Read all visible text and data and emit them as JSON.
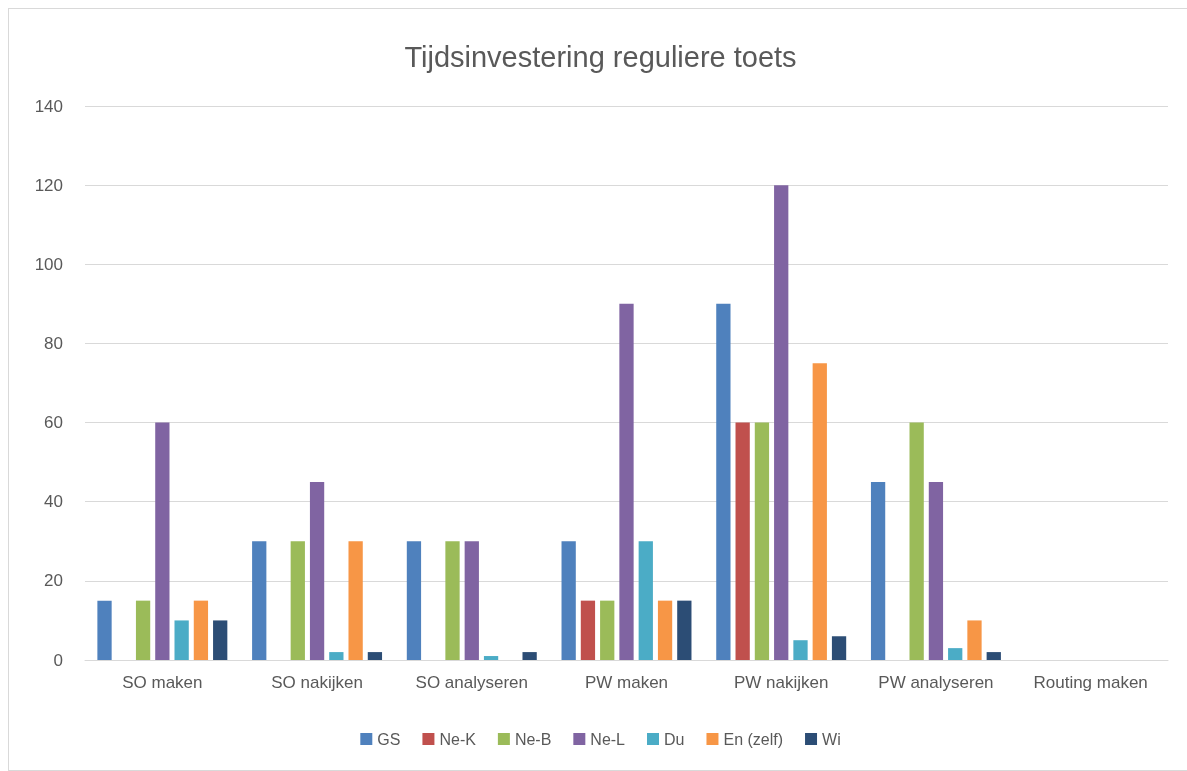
{
  "chart_data": {
    "type": "bar",
    "title": "Tijdsinvestering reguliere toets",
    "categories": [
      "SO maken",
      "SO nakijken",
      "SO analyseren",
      "PW maken",
      "PW nakijken",
      "PW analyseren",
      "Routing maken"
    ],
    "series": [
      {
        "name": "GS",
        "color": "#4f81bd",
        "values": [
          15,
          30,
          30,
          30,
          90,
          45,
          null
        ]
      },
      {
        "name": "Ne-K",
        "color": "#c0504d",
        "values": [
          null,
          null,
          null,
          15,
          60,
          null,
          null
        ]
      },
      {
        "name": "Ne-B",
        "color": "#9bbb59",
        "values": [
          15,
          30,
          30,
          15,
          60,
          60,
          null
        ]
      },
      {
        "name": "Ne-L",
        "color": "#8064a2",
        "values": [
          60,
          45,
          30,
          90,
          120,
          45,
          null
        ]
      },
      {
        "name": "Du",
        "color": "#4bacc6",
        "values": [
          10,
          2,
          1,
          30,
          5,
          3,
          null
        ]
      },
      {
        "name": "En (zelf)",
        "color": "#f79646",
        "values": [
          15,
          30,
          null,
          15,
          75,
          10,
          null
        ]
      },
      {
        "name": "Wi",
        "color": "#2c4d75",
        "values": [
          10,
          2,
          2,
          15,
          6,
          2,
          null
        ]
      }
    ],
    "ylim": [
      0,
      140
    ],
    "yticks": [
      0,
      20,
      40,
      60,
      80,
      100,
      120,
      140
    ],
    "grid": "y",
    "legend": "bottom"
  }
}
